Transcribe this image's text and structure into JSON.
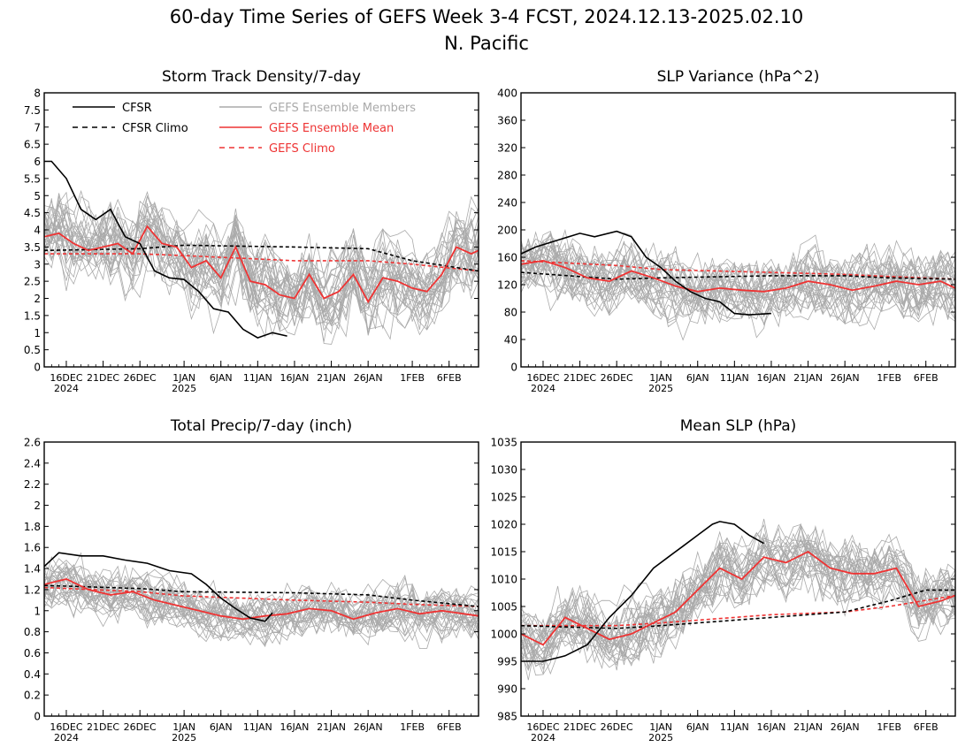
{
  "title_line1": "60-day Time Series of GEFS Week 3-4 FCST, 2024.12.13-2025.02.10",
  "title_line2": "N. Pacific",
  "colors": {
    "cfsr": "#000000",
    "members": "#aaaaaa",
    "mean": "#ee3333",
    "axis": "#000000"
  },
  "x_ticks": {
    "labels": [
      "16DEC",
      "21DEC",
      "26DEC",
      "1JAN",
      "6JAN",
      "11JAN",
      "16JAN",
      "21JAN",
      "26JAN",
      "1FEB",
      "6FEB"
    ],
    "year_labels": {
      "16DEC": "2024",
      "1JAN": "2025"
    }
  },
  "legend": [
    {
      "label": "CFSR",
      "style": "solid",
      "color": "#000000"
    },
    {
      "label": "CFSR Climo",
      "style": "dashed",
      "color": "#000000"
    },
    {
      "label": "GEFS Ensemble Members",
      "style": "solid",
      "color": "#aaaaaa"
    },
    {
      "label": "GEFS Ensemble Mean",
      "style": "solid",
      "color": "#ee3333"
    },
    {
      "label": "GEFS Climo",
      "style": "dashed",
      "color": "#ee3333"
    }
  ],
  "chart_data": [
    {
      "type": "line",
      "title": "Storm Track Density/7-day",
      "x_start": "2024-12-13",
      "x_end": "2025-02-10",
      "ylim": [
        0,
        8
      ],
      "yticks": [
        "0",
        "0.5",
        "1",
        "1.5",
        "2",
        "2.5",
        "3",
        "3.5",
        "4",
        "4.5",
        "5",
        "5.5",
        "6",
        "6.5",
        "7",
        "7.5",
        "8"
      ],
      "ensemble_member_count": 30,
      "ensemble_spread": 1.1,
      "series": [
        {
          "name": "CFSR",
          "style": "solid",
          "x": [
            "2024-12-13",
            "2024-12-14",
            "2024-12-16",
            "2024-12-18",
            "2024-12-20",
            "2024-12-22",
            "2024-12-24",
            "2024-12-26",
            "2024-12-28",
            "2024-12-30",
            "2025-01-01",
            "2025-01-03",
            "2025-01-05",
            "2025-01-07",
            "2025-01-09",
            "2025-01-11",
            "2025-01-13",
            "2025-01-15"
          ],
          "y": [
            6.0,
            6.0,
            5.5,
            4.6,
            4.3,
            4.6,
            3.8,
            3.6,
            2.8,
            2.6,
            2.55,
            2.2,
            1.7,
            1.6,
            1.1,
            0.85,
            1.0,
            0.9
          ]
        },
        {
          "name": "CFSR Climo",
          "style": "dashed",
          "x": [
            "2024-12-13",
            "2024-12-26",
            "2025-01-01",
            "2025-01-16",
            "2025-01-26",
            "2025-02-01",
            "2025-02-10"
          ],
          "y": [
            3.4,
            3.45,
            3.55,
            3.5,
            3.45,
            3.1,
            2.8
          ]
        },
        {
          "name": "GEFS Ensemble Mean",
          "style": "solid",
          "x": [
            "2024-12-13",
            "2024-12-15",
            "2024-12-17",
            "2024-12-19",
            "2024-12-21",
            "2024-12-23",
            "2024-12-25",
            "2024-12-27",
            "2024-12-29",
            "2024-12-31",
            "2025-01-02",
            "2025-01-04",
            "2025-01-06",
            "2025-01-08",
            "2025-01-10",
            "2025-01-12",
            "2025-01-14",
            "2025-01-16",
            "2025-01-18",
            "2025-01-20",
            "2025-01-22",
            "2025-01-24",
            "2025-01-26",
            "2025-01-28",
            "2025-01-30",
            "2025-02-01",
            "2025-02-03",
            "2025-02-05",
            "2025-02-07",
            "2025-02-09",
            "2025-02-10"
          ],
          "y": [
            3.8,
            3.9,
            3.6,
            3.4,
            3.5,
            3.6,
            3.3,
            4.1,
            3.6,
            3.5,
            2.9,
            3.1,
            2.6,
            3.5,
            2.5,
            2.4,
            2.1,
            2.0,
            2.7,
            2.0,
            2.2,
            2.7,
            1.9,
            2.6,
            2.5,
            2.3,
            2.2,
            2.7,
            3.5,
            3.3,
            3.4
          ]
        },
        {
          "name": "GEFS Climo",
          "style": "dashed",
          "x": [
            "2024-12-13",
            "2024-12-26",
            "2025-01-01",
            "2025-01-16",
            "2025-01-26",
            "2025-02-01",
            "2025-02-10"
          ],
          "y": [
            3.3,
            3.3,
            3.25,
            3.1,
            3.1,
            3.0,
            2.8
          ]
        }
      ]
    },
    {
      "type": "line",
      "title": "SLP Variance (hPa^2)",
      "x_start": "2024-12-13",
      "x_end": "2025-02-10",
      "ylim": [
        0,
        400
      ],
      "yticks": [
        "0",
        "40",
        "80",
        "120",
        "160",
        "200",
        "240",
        "280",
        "320",
        "360",
        "400"
      ],
      "ensemble_member_count": 30,
      "ensemble_spread": 45,
      "series": [
        {
          "name": "CFSR",
          "style": "solid",
          "x": [
            "2024-12-13",
            "2024-12-15",
            "2024-12-18",
            "2024-12-21",
            "2024-12-23",
            "2024-12-26",
            "2024-12-28",
            "2024-12-30",
            "2025-01-01",
            "2025-01-03",
            "2025-01-05",
            "2025-01-07",
            "2025-01-09",
            "2025-01-11",
            "2025-01-13",
            "2025-01-16"
          ],
          "y": [
            165,
            175,
            185,
            195,
            190,
            198,
            190,
            160,
            145,
            125,
            110,
            100,
            95,
            78,
            76,
            78
          ]
        },
        {
          "name": "CFSR Climo",
          "style": "dashed",
          "x": [
            "2024-12-13",
            "2024-12-26",
            "2025-01-01",
            "2025-01-16",
            "2025-01-26",
            "2025-02-01",
            "2025-02-10"
          ],
          "y": [
            138,
            128,
            130,
            133,
            133,
            130,
            128
          ]
        },
        {
          "name": "GEFS Ensemble Mean",
          "style": "solid",
          "x": [
            "2024-12-13",
            "2024-12-16",
            "2024-12-19",
            "2024-12-22",
            "2024-12-25",
            "2024-12-28",
            "2024-12-31",
            "2025-01-03",
            "2025-01-06",
            "2025-01-09",
            "2025-01-12",
            "2025-01-15",
            "2025-01-18",
            "2025-01-21",
            "2025-01-24",
            "2025-01-27",
            "2025-01-30",
            "2025-02-02",
            "2025-02-05",
            "2025-02-08",
            "2025-02-10"
          ],
          "y": [
            150,
            155,
            145,
            130,
            125,
            140,
            130,
            118,
            110,
            115,
            112,
            110,
            115,
            125,
            120,
            112,
            118,
            125,
            120,
            125,
            115
          ]
        },
        {
          "name": "GEFS Climo",
          "style": "dashed",
          "x": [
            "2024-12-13",
            "2024-12-26",
            "2025-01-01",
            "2025-01-16",
            "2025-01-26",
            "2025-02-01",
            "2025-02-10"
          ],
          "y": [
            155,
            148,
            142,
            138,
            135,
            132,
            128
          ]
        }
      ]
    },
    {
      "type": "line",
      "title": "Total Precip/7-day (inch)",
      "x_start": "2024-12-13",
      "x_end": "2025-02-10",
      "ylim": [
        0,
        2.6
      ],
      "yticks": [
        "0",
        "0.2",
        "0.4",
        "0.6",
        "0.8",
        "1",
        "1.2",
        "1.4",
        "1.6",
        "1.8",
        "2",
        "2.2",
        "2.4",
        "2.6"
      ],
      "ensemble_member_count": 30,
      "ensemble_spread": 0.22,
      "series": [
        {
          "name": "CFSR",
          "style": "solid",
          "x": [
            "2024-12-13",
            "2024-12-15",
            "2024-12-18",
            "2024-12-21",
            "2024-12-24",
            "2024-12-27",
            "2024-12-30",
            "2025-01-02",
            "2025-01-04",
            "2025-01-06",
            "2025-01-08",
            "2025-01-10",
            "2025-01-12",
            "2025-01-13"
          ],
          "y": [
            1.42,
            1.55,
            1.52,
            1.52,
            1.48,
            1.45,
            1.38,
            1.35,
            1.25,
            1.12,
            1.02,
            0.93,
            0.9,
            0.98
          ]
        },
        {
          "name": "CFSR Climo",
          "style": "dashed",
          "x": [
            "2024-12-13",
            "2024-12-26",
            "2025-01-01",
            "2025-01-16",
            "2025-01-26",
            "2025-02-01",
            "2025-02-10"
          ],
          "y": [
            1.24,
            1.21,
            1.18,
            1.17,
            1.15,
            1.1,
            1.04
          ]
        },
        {
          "name": "GEFS Ensemble Mean",
          "style": "solid",
          "x": [
            "2024-12-13",
            "2024-12-16",
            "2024-12-19",
            "2024-12-22",
            "2024-12-25",
            "2024-12-28",
            "2024-12-31",
            "2025-01-03",
            "2025-01-06",
            "2025-01-09",
            "2025-01-12",
            "2025-01-15",
            "2025-01-18",
            "2025-01-21",
            "2025-01-24",
            "2025-01-27",
            "2025-01-30",
            "2025-02-02",
            "2025-02-05",
            "2025-02-08",
            "2025-02-10"
          ],
          "y": [
            1.25,
            1.3,
            1.2,
            1.15,
            1.18,
            1.1,
            1.05,
            1.0,
            0.95,
            0.92,
            0.95,
            0.97,
            1.02,
            1.0,
            0.92,
            0.98,
            1.02,
            0.97,
            1.0,
            0.97,
            0.95
          ]
        },
        {
          "name": "GEFS Climo",
          "style": "dashed",
          "x": [
            "2024-12-13",
            "2024-12-26",
            "2025-01-01",
            "2025-01-16",
            "2025-01-26",
            "2025-02-01",
            "2025-02-10"
          ],
          "y": [
            1.22,
            1.18,
            1.14,
            1.1,
            1.08,
            1.06,
            1.04
          ]
        }
      ]
    },
    {
      "type": "line",
      "title": "Mean SLP (hPa)",
      "x_start": "2024-12-13",
      "x_end": "2025-02-10",
      "ylim": [
        985,
        1035
      ],
      "yticks": [
        "985",
        "990",
        "995",
        "1000",
        "1005",
        "1010",
        "1015",
        "1020",
        "1025",
        "1030",
        "1035"
      ],
      "ensemble_member_count": 30,
      "ensemble_spread": 5.5,
      "series": [
        {
          "name": "CFSR",
          "style": "solid",
          "x": [
            "2024-12-13",
            "2024-12-16",
            "2024-12-19",
            "2024-12-22",
            "2024-12-25",
            "2024-12-28",
            "2024-12-31",
            "2025-01-02",
            "2025-01-04",
            "2025-01-06",
            "2025-01-08",
            "2025-01-09",
            "2025-01-11",
            "2025-01-13",
            "2025-01-15"
          ],
          "y": [
            995,
            995,
            996,
            998,
            1003,
            1007,
            1012,
            1014,
            1016,
            1018,
            1020,
            1020.5,
            1020,
            1018,
            1016.5
          ]
        },
        {
          "name": "CFSR Climo",
          "style": "dashed",
          "x": [
            "2024-12-13",
            "2024-12-26",
            "2025-01-01",
            "2025-01-16",
            "2025-01-26",
            "2025-02-01",
            "2025-02-06",
            "2025-02-10"
          ],
          "y": [
            1001.5,
            1001,
            1001.5,
            1003,
            1004,
            1006,
            1008,
            1008
          ]
        },
        {
          "name": "GEFS Ensemble Mean",
          "style": "solid",
          "x": [
            "2024-12-13",
            "2024-12-16",
            "2024-12-19",
            "2024-12-22",
            "2024-12-25",
            "2024-12-28",
            "2024-12-31",
            "2025-01-03",
            "2025-01-06",
            "2025-01-09",
            "2025-01-12",
            "2025-01-15",
            "2025-01-18",
            "2025-01-21",
            "2025-01-24",
            "2025-01-27",
            "2025-01-30",
            "2025-02-02",
            "2025-02-05",
            "2025-02-08",
            "2025-02-10"
          ],
          "y": [
            1000,
            998,
            1003,
            1001,
            999,
            1000,
            1002,
            1004,
            1008,
            1012,
            1010,
            1014,
            1013,
            1015,
            1012,
            1011,
            1011,
            1012,
            1005,
            1006,
            1007
          ]
        },
        {
          "name": "GEFS Climo",
          "style": "dashed",
          "x": [
            "2024-12-13",
            "2024-12-26",
            "2025-01-01",
            "2025-01-16",
            "2025-01-26",
            "2025-02-01",
            "2025-02-10"
          ],
          "y": [
            1001.5,
            1001.5,
            1002,
            1003.5,
            1004,
            1005,
            1007
          ]
        }
      ]
    }
  ]
}
